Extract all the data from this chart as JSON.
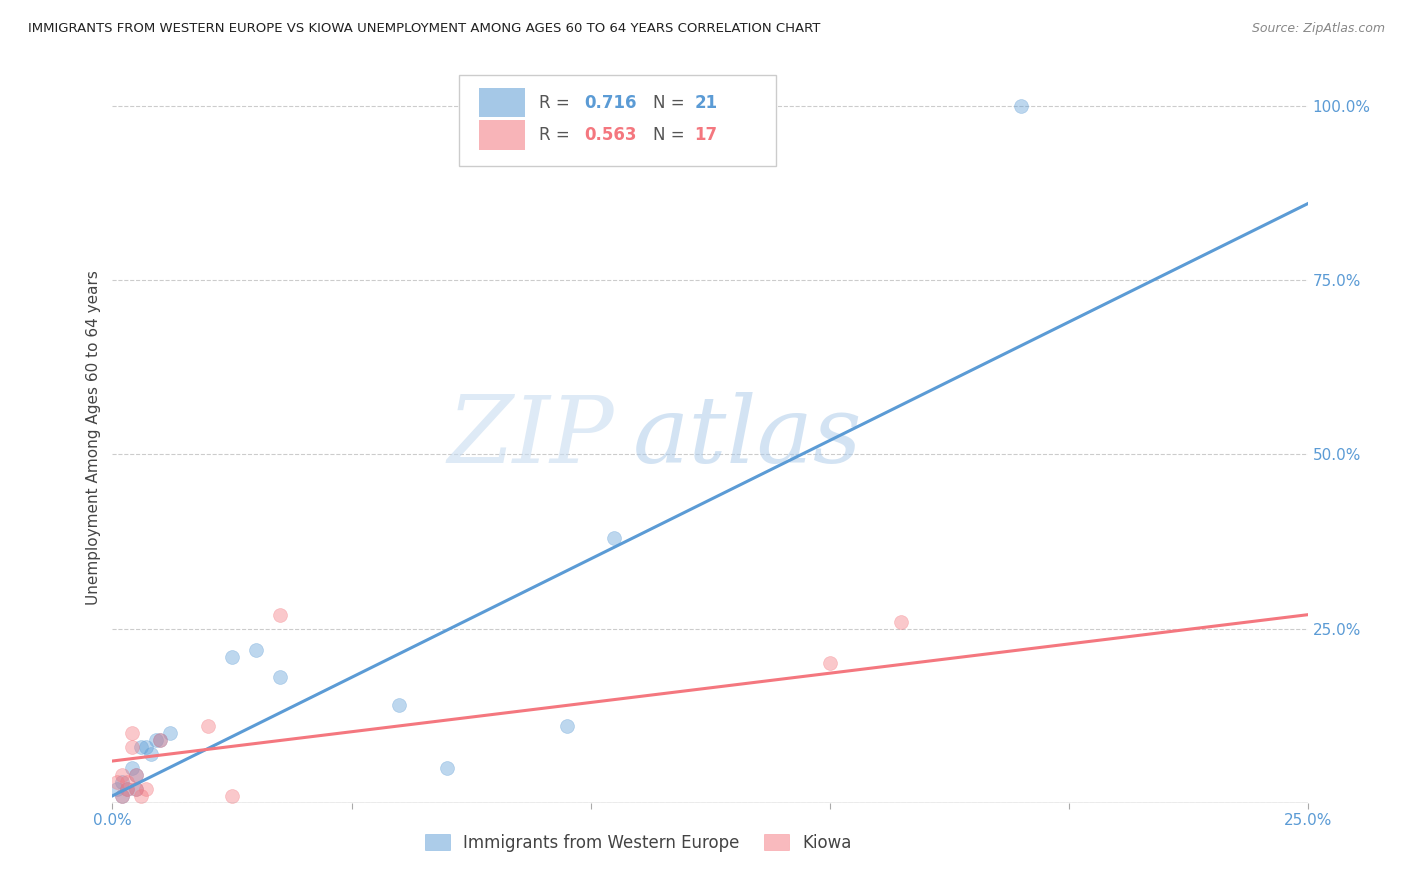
{
  "title": "IMMIGRANTS FROM WESTERN EUROPE VS KIOWA UNEMPLOYMENT AMONG AGES 60 TO 64 YEARS CORRELATION CHART",
  "source": "Source: ZipAtlas.com",
  "ylabel": "Unemployment Among Ages 60 to 64 years",
  "xlim": [
    0.0,
    0.25
  ],
  "ylim": [
    0.0,
    1.05
  ],
  "x_ticks": [
    0.0,
    0.05,
    0.1,
    0.15,
    0.2,
    0.25
  ],
  "x_tick_labels": [
    "0.0%",
    "",
    "",
    "",
    "",
    "25.0%"
  ],
  "y_ticks_right": [
    0.0,
    0.25,
    0.5,
    0.75,
    1.0
  ],
  "y_tick_labels_right": [
    "",
    "25.0%",
    "50.0%",
    "75.0%",
    "100.0%"
  ],
  "blue_color": "#5b9bd5",
  "pink_color": "#f4777f",
  "tick_label_color": "#5b9bd5",
  "blue_R": 0.716,
  "blue_N": 21,
  "pink_R": 0.563,
  "pink_N": 17,
  "blue_scatter_x": [
    0.001,
    0.002,
    0.002,
    0.003,
    0.004,
    0.005,
    0.005,
    0.006,
    0.007,
    0.008,
    0.009,
    0.01,
    0.012,
    0.025,
    0.03,
    0.035,
    0.06,
    0.07,
    0.095,
    0.105,
    0.19
  ],
  "blue_scatter_y": [
    0.02,
    0.01,
    0.03,
    0.02,
    0.05,
    0.02,
    0.04,
    0.08,
    0.08,
    0.07,
    0.09,
    0.09,
    0.1,
    0.21,
    0.22,
    0.18,
    0.14,
    0.05,
    0.11,
    0.38,
    1.0
  ],
  "pink_scatter_x": [
    0.001,
    0.002,
    0.002,
    0.003,
    0.003,
    0.004,
    0.004,
    0.005,
    0.005,
    0.006,
    0.007,
    0.01,
    0.02,
    0.025,
    0.035,
    0.15,
    0.165
  ],
  "pink_scatter_y": [
    0.03,
    0.01,
    0.04,
    0.02,
    0.03,
    0.08,
    0.1,
    0.04,
    0.02,
    0.01,
    0.02,
    0.09,
    0.11,
    0.01,
    0.27,
    0.2,
    0.26
  ],
  "blue_line_x": [
    0.0,
    0.25
  ],
  "blue_line_y": [
    0.01,
    0.86
  ],
  "pink_line_x": [
    0.0,
    0.25
  ],
  "pink_line_y": [
    0.06,
    0.27
  ],
  "background_color": "#ffffff",
  "grid_color": "#cccccc",
  "watermark_zip": "ZIP",
  "watermark_atlas": "atlas",
  "legend_label_blue": "Immigrants from Western Europe",
  "legend_label_pink": "Kiowa",
  "marker_size": 100
}
